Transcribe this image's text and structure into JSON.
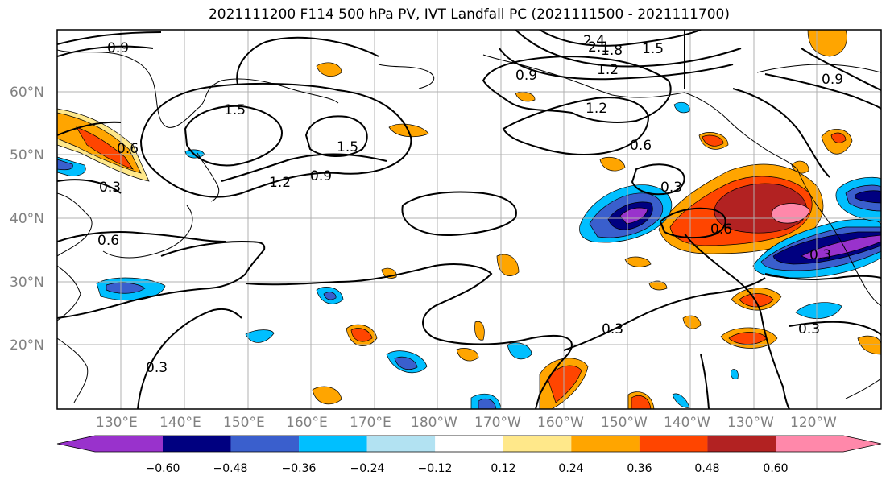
{
  "title": "2021111200 F114 500 hPa PV, IVT Landfall PC (2021111500 - 2021111700)",
  "latitude_labels": [
    "60°N",
    "50°N",
    "40°N",
    "30°N",
    "20°N"
  ],
  "longitude_labels": [
    "130°E",
    "140°E",
    "150°E",
    "160°E",
    "170°E",
    "180°W",
    "170°W",
    "160°W",
    "150°W",
    "140°W",
    "130°W",
    "120°W"
  ],
  "contour_labels": [
    "0.9",
    "2.4",
    "2.1",
    "1.8",
    "1.5",
    "1.2",
    "0.9",
    "1.5",
    "0.9",
    "1.2",
    "0.6",
    "0.6",
    "0.3",
    "1.5",
    "1.2",
    "0.9",
    "0.3",
    "0.6",
    "0.6",
    "0.3",
    "0.3",
    "0.3",
    "0.3"
  ],
  "colorbar": {
    "tick_labels": [
      "−0.60",
      "−0.48",
      "−0.36",
      "−0.24",
      "−0.12",
      "0.12",
      "0.24",
      "0.36",
      "0.48",
      "0.60"
    ],
    "colors": [
      "#9932cc",
      "#000080",
      "#3a5fcd",
      "#00bfff",
      "#b2e2f2",
      "#ffffff",
      "#ffe88a",
      "#ffa500",
      "#ff4500",
      "#b22222",
      "#ff88aa"
    ]
  },
  "chart_data": {
    "type": "heatmap",
    "title": "2021111200 F114 500 hPa PV, IVT Landfall PC (2021111500 - 2021111700)",
    "levels": [
      -0.6,
      -0.48,
      -0.36,
      -0.24,
      -0.12,
      0.12,
      0.24,
      0.36,
      0.48,
      0.6
    ],
    "contour_values": [
      0.3,
      0.6,
      0.9,
      1.2,
      1.5,
      1.8,
      2.1,
      2.4
    ]
  }
}
